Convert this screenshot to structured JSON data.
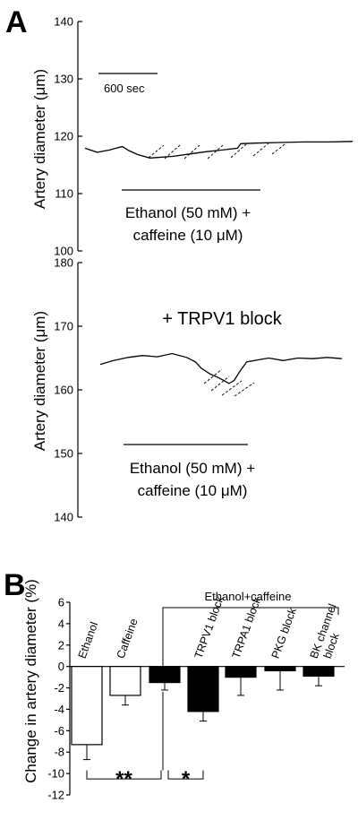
{
  "panels": {
    "a": {
      "letter": "A"
    },
    "b": {
      "letter": "B"
    }
  },
  "chart_data": [
    {
      "type": "line",
      "ylabel": "Artery diameter (μm)",
      "ylim": [
        100,
        140
      ],
      "yticks": [
        100,
        110,
        120,
        130,
        140
      ],
      "scale_bar": "600 sec",
      "annotation": [
        "Ethanol (50 mM) +",
        "caffeine (10 μM)"
      ],
      "series": [
        {
          "x": [
            0,
            150,
            300,
            460,
            540,
            650,
            800,
            900,
            1090,
            1290,
            1490,
            1690,
            1880,
            1920,
            2100,
            2400,
            2700,
            3000,
            3300
          ],
          "values": [
            117.9,
            117.2,
            117.6,
            118.2,
            117.5,
            116.8,
            116.2,
            116.3,
            116.5,
            116.9,
            117.3,
            117.6,
            117.9,
            118.7,
            118.8,
            118.9,
            119.0,
            119.0,
            119.1
          ]
        }
      ]
    },
    {
      "type": "line",
      "title": "+ TRPV1 block",
      "ylabel": "Artery diameter (μm)",
      "ylim": [
        140,
        180
      ],
      "yticks": [
        140,
        150,
        160,
        170,
        180
      ],
      "annotation": [
        "Ethanol (50 mM) +",
        "caffeine (10 μM)"
      ],
      "series": [
        {
          "x": [
            0,
            180,
            380,
            580,
            780,
            980,
            1180,
            1300,
            1380,
            1500,
            1600,
            1700,
            1760,
            1830,
            1900,
            2000,
            2150,
            2300,
            2500,
            2700,
            2900,
            3100,
            3300
          ],
          "values": [
            164.0,
            164.6,
            165.1,
            165.4,
            165.2,
            165.7,
            165.1,
            164.4,
            163.4,
            162.5,
            162.0,
            161.4,
            161.0,
            161.5,
            162.8,
            164.4,
            164.7,
            165.0,
            164.6,
            165.0,
            164.9,
            165.1,
            164.9
          ]
        }
      ]
    },
    {
      "type": "bar",
      "ylabel": "Change in artery diameter (%)",
      "ylim": [
        -12,
        6
      ],
      "yticks": [
        6,
        4,
        2,
        0,
        -2,
        -4,
        -6,
        -8,
        -10,
        -12
      ],
      "group_label": "Ethanol+caffeine",
      "categories": [
        "Ethanol",
        "Caffeine",
        "",
        "TRPV1 block",
        "TRPA1 block",
        "PKG block",
        "BK channel\nblock"
      ],
      "values": [
        -7.3,
        -2.7,
        -1.5,
        -4.2,
        -1.0,
        -0.4,
        -0.9
      ],
      "errors": [
        1.4,
        0.9,
        0.7,
        0.9,
        1.7,
        1.8,
        0.9
      ],
      "colors": [
        "#ffffff",
        "#ffffff",
        "#000000",
        "#000000",
        "#000000",
        "#000000",
        "#000000"
      ],
      "significance": [
        {
          "between": [
            0,
            2
          ],
          "label": "**"
        },
        {
          "between": [
            2,
            3
          ],
          "label": "*"
        }
      ]
    }
  ]
}
